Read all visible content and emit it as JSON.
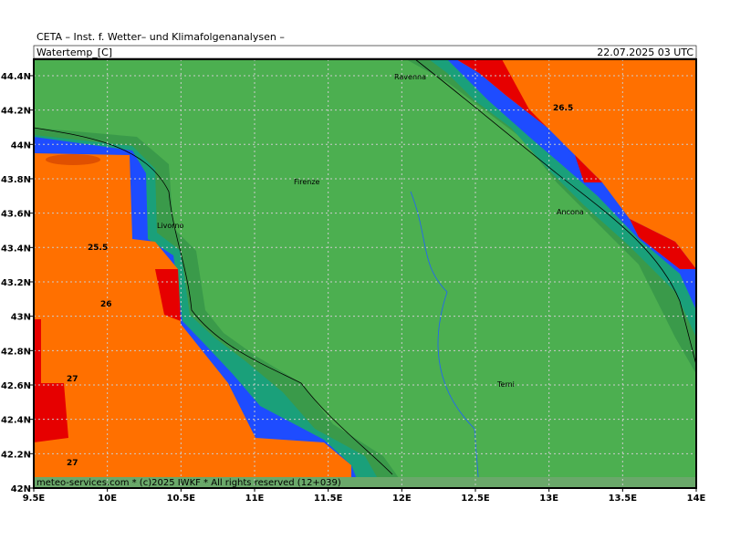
{
  "header": {
    "title": "CETA – Inst. f. Wetter– und Klimafolgenanalysen –",
    "variable": "Watertemp_[C]",
    "valid_time": "22.07.2025 03 UTC"
  },
  "lat_ticks": [
    "42N",
    "42.2N",
    "42.4N",
    "42.6N",
    "42.8N",
    "43N",
    "43.2N",
    "43.4N",
    "43.6N",
    "43.8N",
    "44N",
    "44.2N",
    "44.4N"
  ],
  "lon_ticks": [
    "9.5E",
    "10E",
    "10.5E",
    "11E",
    "11.5E",
    "12E",
    "12.5E",
    "13E",
    "13.5E",
    "14E"
  ],
  "cities": [
    "Ravenna",
    "Firenze",
    "Livorno",
    "Ancona",
    "Terni"
  ],
  "contour_labels": [
    "26.5",
    "25.5",
    "26",
    "27",
    "27"
  ],
  "footer": "meteo-services.com * (c)2025 IWKF * All rights reserved (12+039)"
}
